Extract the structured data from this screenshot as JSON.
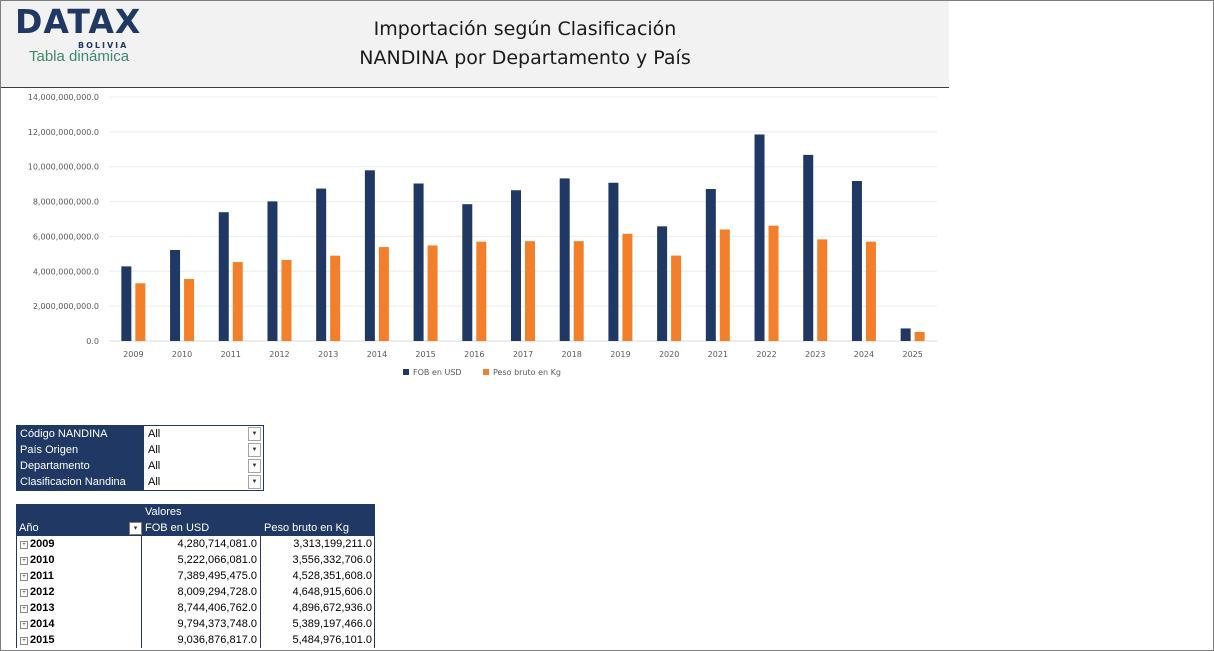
{
  "header": {
    "logo_main": "DATAX",
    "logo_sub": "BOLIVIA",
    "logo_tag": "Tabla dinámica",
    "title_line1": "Importación según Clasificación",
    "title_line2": "NANDINA por Departamento y País"
  },
  "colors": {
    "fob": "#203864",
    "peso": "#f47f2a",
    "header_band": "#f2f2f2",
    "table_header": "#1f3864"
  },
  "chart_data": {
    "type": "bar",
    "categories": [
      "2009",
      "2010",
      "2011",
      "2012",
      "2013",
      "2014",
      "2015",
      "2016",
      "2017",
      "2018",
      "2019",
      "2020",
      "2021",
      "2022",
      "2023",
      "2024",
      "2025"
    ],
    "series": [
      {
        "name": "FOB en USD",
        "values": [
          4280714081.0,
          5222066081.0,
          7389495475.0,
          8009294728.0,
          8744406762.0,
          9794373748.0,
          9036876817.0,
          7850000000.0,
          8650000000.0,
          9330000000.0,
          9080000000.0,
          6580000000.0,
          8720000000.0,
          11850000000.0,
          10680000000.0,
          9180000000.0,
          720000000.0
        ]
      },
      {
        "name": "Peso bruto en Kg",
        "values": [
          3313199211.0,
          3556332706.0,
          4528351608.0,
          4648915606.0,
          4896672936.0,
          5389197466.0,
          5484976101.0,
          5700000000.0,
          5730000000.0,
          5730000000.0,
          6150000000.0,
          4900000000.0,
          6400000000.0,
          6620000000.0,
          5830000000.0,
          5700000000.0,
          520000000.0
        ]
      }
    ],
    "yticks": [
      "0.0",
      "2,000,000,000.0",
      "4,000,000,000.0",
      "6,000,000,000.0",
      "8,000,000,000.0",
      "10,000,000,000.0",
      "12,000,000,000.0",
      "14,000,000,000.0"
    ],
    "ylim": [
      0,
      14000000000
    ],
    "grid": true,
    "legend": "bottom"
  },
  "filters": [
    {
      "label": "Código NANDINA",
      "value": "All"
    },
    {
      "label": "País Origen",
      "value": "All"
    },
    {
      "label": "Departamento",
      "value": "All"
    },
    {
      "label": "Clasificacion Nandina",
      "value": "All"
    }
  ],
  "pivot": {
    "values_header": "Valores",
    "col_year": "Año",
    "col_fob": "FOB en USD",
    "col_peso": "Peso bruto en Kg",
    "rows": [
      {
        "year": "2009",
        "fob": "4,280,714,081.0",
        "peso": "3,313,199,211.0"
      },
      {
        "year": "2010",
        "fob": "5,222,066,081.0",
        "peso": "3,556,332,706.0"
      },
      {
        "year": "2011",
        "fob": "7,389,495,475.0",
        "peso": "4,528,351,608.0"
      },
      {
        "year": "2012",
        "fob": "8,009,294,728.0",
        "peso": "4,648,915,606.0"
      },
      {
        "year": "2013",
        "fob": "8,744,406,762.0",
        "peso": "4,896,672,936.0"
      },
      {
        "year": "2014",
        "fob": "9,794,373,748.0",
        "peso": "5,389,197,466.0"
      },
      {
        "year": "2015",
        "fob": "9,036,876,817.0",
        "peso": "5,484,976,101.0"
      }
    ]
  }
}
